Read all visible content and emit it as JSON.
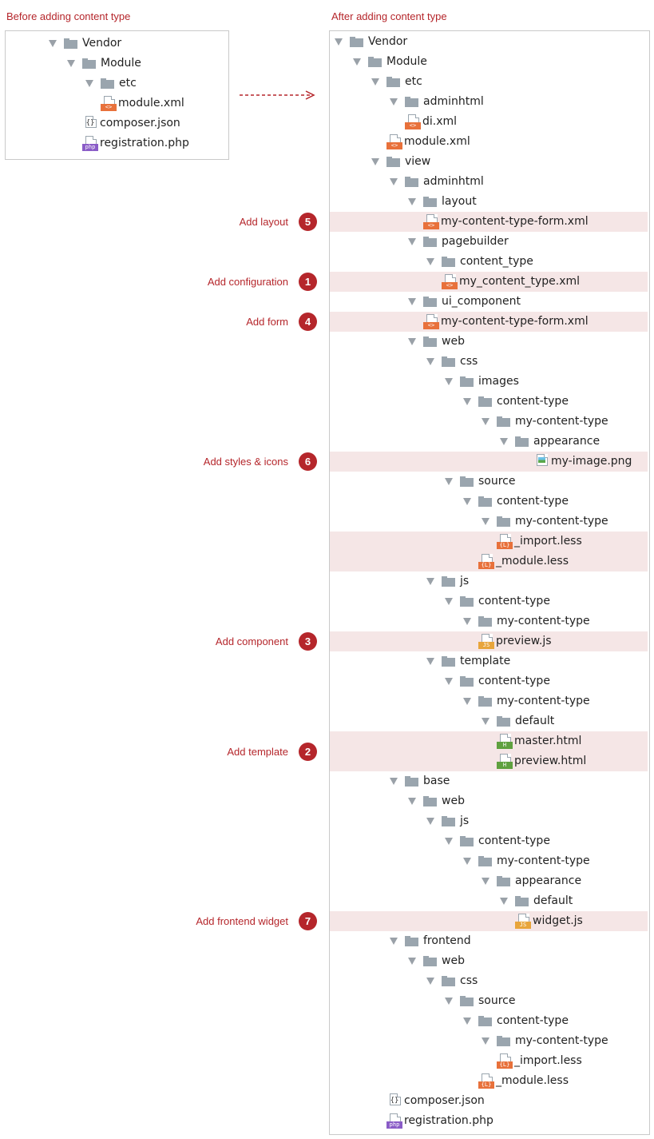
{
  "captions": {
    "before": "Before adding content type",
    "after": "After adding content type"
  },
  "colors": {
    "accent": "#b5262b",
    "highlight": "#f5e6e6",
    "folder": "#9aa5ae",
    "xml_badge": "#e8713b",
    "less_badge": "#e8713b",
    "js_badge": "#e8a53b",
    "html_badge": "#5fa13f",
    "php_badge": "#8a5cc7"
  },
  "before_tree": [
    {
      "depth": 0,
      "type": "folder",
      "name": "Vendor",
      "expanded": true
    },
    {
      "depth": 1,
      "type": "folder",
      "name": "Module",
      "expanded": true
    },
    {
      "depth": 2,
      "type": "folder",
      "name": "etc",
      "expanded": true
    },
    {
      "depth": 3,
      "type": "xml",
      "name": "module.xml"
    },
    {
      "depth": 2,
      "type": "json",
      "name": "composer.json"
    },
    {
      "depth": 2,
      "type": "php",
      "name": "registration.php"
    }
  ],
  "after_tree": [
    {
      "depth": 0,
      "type": "folder",
      "name": "Vendor",
      "expanded": true
    },
    {
      "depth": 1,
      "type": "folder",
      "name": "Module",
      "expanded": true
    },
    {
      "depth": 2,
      "type": "folder",
      "name": "etc",
      "expanded": true
    },
    {
      "depth": 3,
      "type": "folder",
      "name": "adminhtml",
      "expanded": true
    },
    {
      "depth": 4,
      "type": "xml",
      "name": "di.xml"
    },
    {
      "depth": 3,
      "type": "xml",
      "name": "module.xml"
    },
    {
      "depth": 2,
      "type": "folder",
      "name": "view",
      "expanded": true
    },
    {
      "depth": 3,
      "type": "folder",
      "name": "adminhtml",
      "expanded": true
    },
    {
      "depth": 4,
      "type": "folder",
      "name": "layout",
      "expanded": true
    },
    {
      "depth": 5,
      "type": "xml",
      "name": "my-content-type-form.xml",
      "highlight": true,
      "step": "5",
      "step_label": "Add layout"
    },
    {
      "depth": 4,
      "type": "folder",
      "name": "pagebuilder",
      "expanded": true
    },
    {
      "depth": 5,
      "type": "folder",
      "name": "content_type",
      "expanded": true
    },
    {
      "depth": 6,
      "type": "xml",
      "name": "my_content_type.xml",
      "highlight": true,
      "step": "1",
      "step_label": "Add configuration"
    },
    {
      "depth": 4,
      "type": "folder",
      "name": "ui_component",
      "expanded": true
    },
    {
      "depth": 5,
      "type": "xml",
      "name": "my-content-type-form.xml",
      "highlight": true,
      "step": "4",
      "step_label": "Add form"
    },
    {
      "depth": 4,
      "type": "folder",
      "name": "web",
      "expanded": true
    },
    {
      "depth": 5,
      "type": "folder",
      "name": "css",
      "expanded": true
    },
    {
      "depth": 6,
      "type": "folder",
      "name": "images",
      "expanded": true
    },
    {
      "depth": 7,
      "type": "folder",
      "name": "content-type",
      "expanded": true
    },
    {
      "depth": 8,
      "type": "folder",
      "name": "my-content-type",
      "expanded": true
    },
    {
      "depth": 9,
      "type": "folder",
      "name": "appearance",
      "expanded": true
    },
    {
      "depth": 11,
      "type": "png",
      "name": "my-image.png",
      "highlight": true,
      "step": "6",
      "step_label": "Add styles & icons",
      "hl_span": 3
    },
    {
      "depth": 6,
      "type": "folder",
      "name": "source",
      "expanded": true
    },
    {
      "depth": 7,
      "type": "folder",
      "name": "content-type",
      "expanded": true
    },
    {
      "depth": 8,
      "type": "folder",
      "name": "my-content-type",
      "expanded": true
    },
    {
      "depth": 9,
      "type": "less",
      "name": "_import.less",
      "highlight": true
    },
    {
      "depth": 8,
      "type": "less",
      "name": "_module.less",
      "highlight": true
    },
    {
      "depth": 5,
      "type": "folder",
      "name": "js",
      "expanded": true
    },
    {
      "depth": 6,
      "type": "folder",
      "name": "content-type",
      "expanded": true
    },
    {
      "depth": 7,
      "type": "folder",
      "name": "my-content-type",
      "expanded": true
    },
    {
      "depth": 8,
      "type": "js",
      "name": "preview.js",
      "highlight": true,
      "step": "3",
      "step_label": "Add component"
    },
    {
      "depth": 5,
      "type": "folder",
      "name": "template",
      "expanded": true
    },
    {
      "depth": 6,
      "type": "folder",
      "name": "content-type",
      "expanded": true
    },
    {
      "depth": 7,
      "type": "folder",
      "name": "my-content-type",
      "expanded": true
    },
    {
      "depth": 8,
      "type": "folder",
      "name": "default",
      "expanded": true
    },
    {
      "depth": 9,
      "type": "html",
      "name": "master.html",
      "highlight": true
    },
    {
      "depth": 9,
      "type": "html",
      "name": "preview.html",
      "highlight": true
    },
    {
      "depth": 3,
      "type": "folder",
      "name": "base",
      "expanded": true
    },
    {
      "depth": 4,
      "type": "folder",
      "name": "web",
      "expanded": true
    },
    {
      "depth": 5,
      "type": "folder",
      "name": "js",
      "expanded": true
    },
    {
      "depth": 6,
      "type": "folder",
      "name": "content-type",
      "expanded": true
    },
    {
      "depth": 7,
      "type": "folder",
      "name": "my-content-type",
      "expanded": true
    },
    {
      "depth": 8,
      "type": "folder",
      "name": "appearance",
      "expanded": true
    },
    {
      "depth": 9,
      "type": "folder",
      "name": "default",
      "expanded": true
    },
    {
      "depth": 10,
      "type": "js",
      "name": "widget.js",
      "highlight": true,
      "step": "7",
      "step_label": "Add frontend widget"
    },
    {
      "depth": 3,
      "type": "folder",
      "name": "frontend",
      "expanded": true
    },
    {
      "depth": 4,
      "type": "folder",
      "name": "web",
      "expanded": true
    },
    {
      "depth": 5,
      "type": "folder",
      "name": "css",
      "expanded": true
    },
    {
      "depth": 6,
      "type": "folder",
      "name": "source",
      "expanded": true
    },
    {
      "depth": 7,
      "type": "folder",
      "name": "content-type",
      "expanded": true
    },
    {
      "depth": 8,
      "type": "folder",
      "name": "my-content-type",
      "expanded": true
    },
    {
      "depth": 9,
      "type": "less",
      "name": "_import.less"
    },
    {
      "depth": 8,
      "type": "less",
      "name": "_module.less"
    },
    {
      "depth": 3,
      "type": "json",
      "name": "composer.json"
    },
    {
      "depth": 3,
      "type": "php",
      "name": "registration.php"
    }
  ],
  "annotations": [
    {
      "step": "5",
      "label": "Add layout"
    },
    {
      "step": "1",
      "label": "Add configuration"
    },
    {
      "step": "4",
      "label": "Add form"
    },
    {
      "step": "6",
      "label": "Add styles & icons"
    },
    {
      "step": "3",
      "label": "Add component"
    },
    {
      "step": "2",
      "label": "Add template"
    },
    {
      "step": "7",
      "label": "Add frontend widget"
    }
  ],
  "badges": {
    "xml": "<>",
    "less": "{L}",
    "js": "JS",
    "html": "H",
    "json": "{}",
    "php": "php"
  }
}
